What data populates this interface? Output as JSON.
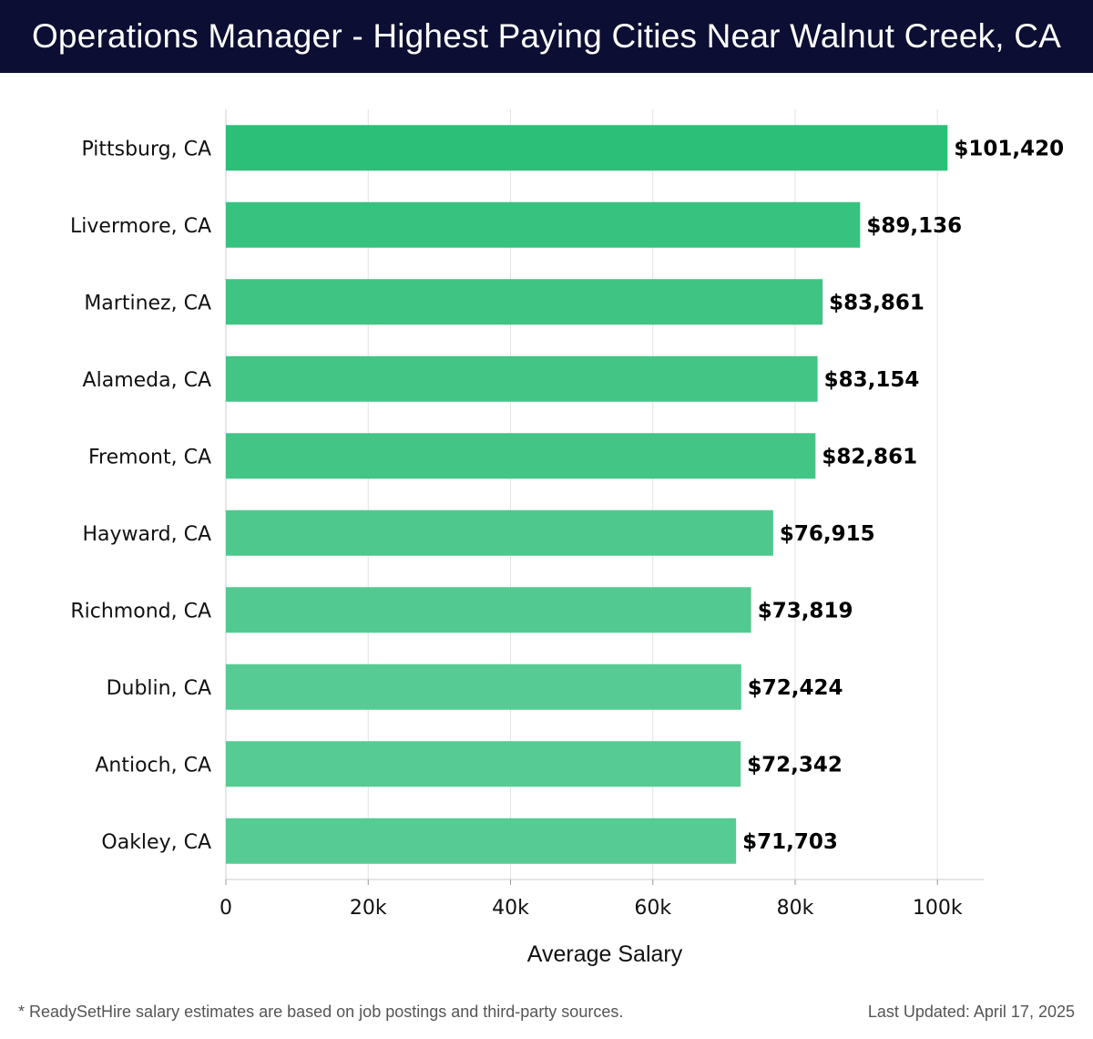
{
  "header": {
    "title": "Operations Manager - Highest Paying Cities Near Walnut Creek, CA"
  },
  "chart_data": {
    "type": "bar",
    "orientation": "horizontal",
    "title": "Operations Manager - Highest Paying Cities Near Walnut Creek, CA",
    "xlabel": "Average Salary",
    "ylabel": "",
    "xlim": [
      0,
      106500
    ],
    "x_ticks": [
      0,
      20000,
      40000,
      60000,
      80000,
      100000
    ],
    "x_tick_labels": [
      "0",
      "20k",
      "40k",
      "60k",
      "80k",
      "100k"
    ],
    "grid": true,
    "categories": [
      "Pittsburg, CA",
      "Livermore, CA",
      "Martinez, CA",
      "Alameda, CA",
      "Fremont, CA",
      "Hayward, CA",
      "Richmond, CA",
      "Dublin, CA",
      "Antioch, CA",
      "Oakley, CA"
    ],
    "values": [
      101420,
      89136,
      83861,
      83154,
      82861,
      76915,
      73819,
      72424,
      72342,
      71703
    ],
    "value_labels": [
      "$101,420",
      "$89,136",
      "$83,861",
      "$83,154",
      "$82,861",
      "$76,915",
      "$73,819",
      "$72,424",
      "$72,342",
      "$71,703"
    ],
    "colors": [
      "#2bbf78",
      "#37c27f",
      "#3fc483",
      "#42c585",
      "#43c586",
      "#4fc88d",
      "#52c990",
      "#56cb93",
      "#56cb93",
      "#57cb94"
    ]
  },
  "footer": {
    "note": "* ReadySetHire salary estimates are based on job postings and third-party sources.",
    "updated": "Last Updated: April 17, 2025"
  }
}
